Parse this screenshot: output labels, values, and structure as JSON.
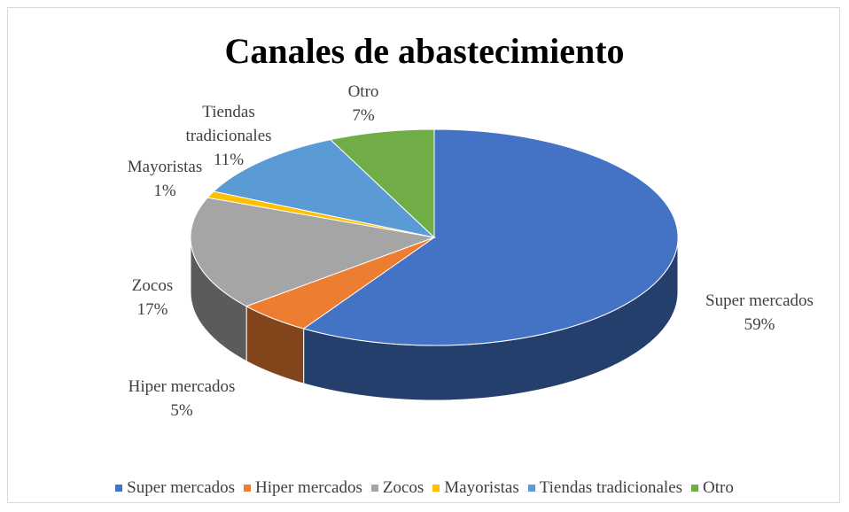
{
  "chart_data": {
    "type": "pie",
    "title": "Canales de abastecimiento",
    "categories": [
      "Super mercados",
      "Hiper mercados",
      "Zocos",
      "Mayoristas",
      "Tiendas tradicionales",
      "Otro"
    ],
    "values": [
      59,
      5,
      17,
      1,
      11,
      7
    ],
    "value_labels": [
      "59%",
      "5%",
      "17%",
      "1%",
      "11%",
      "7%"
    ],
    "colors": [
      "#4472c4",
      "#ed7d31",
      "#a5a5a5",
      "#ffc000",
      "#5b9bd5",
      "#70ad47"
    ],
    "legend": "bottom"
  }
}
